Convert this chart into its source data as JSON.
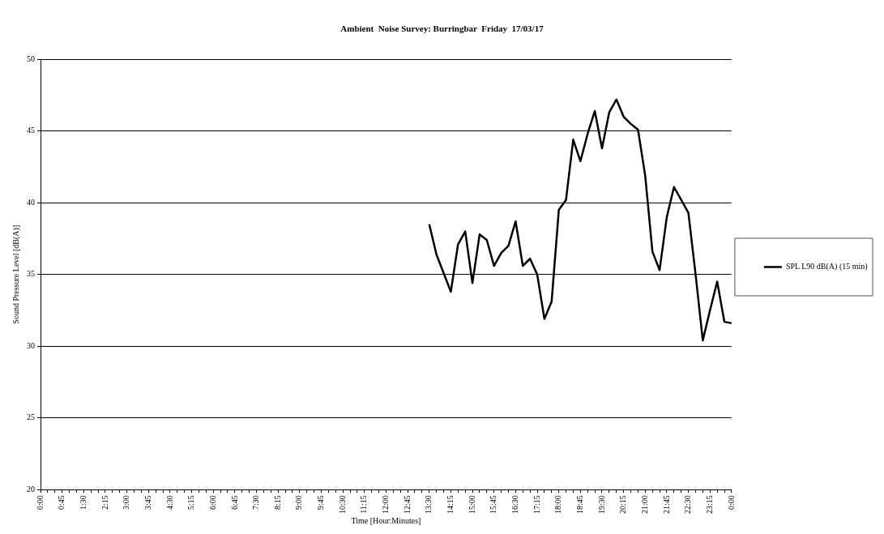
{
  "chart_data": {
    "type": "line",
    "title": "Ambient  Noise Survey: Burringbar  Friday  17/03/17",
    "xlabel": "Time [Hour:Minutes]",
    "ylabel": "Sound Pressure Level [dB(A)]",
    "categories": [
      "0:00",
      null,
      null,
      "0:45",
      null,
      null,
      "1:30",
      null,
      null,
      "2:15",
      null,
      null,
      "3:00",
      null,
      null,
      "3:45",
      null,
      null,
      "4:30",
      null,
      null,
      "5:15",
      null,
      null,
      "6:00",
      null,
      null,
      "6:45",
      null,
      null,
      "7:30",
      null,
      null,
      "8:15",
      null,
      null,
      "9:00",
      null,
      null,
      "9:45",
      null,
      null,
      "10:30",
      null,
      null,
      "11:15",
      null,
      null,
      "12:00",
      null,
      null,
      "12:45",
      null,
      null,
      "13:30",
      null,
      null,
      "14:15",
      null,
      null,
      "15:00",
      null,
      null,
      "15:45",
      null,
      null,
      "16:30",
      null,
      null,
      "17:15",
      null,
      null,
      "18:00",
      null,
      null,
      "18:45",
      null,
      null,
      "19:30",
      null,
      null,
      "20:15",
      null,
      null,
      "21:00",
      null,
      null,
      "21:45",
      null,
      null,
      "22:30",
      null,
      null,
      "23:15",
      null,
      null,
      "0:00"
    ],
    "series": [
      {
        "name": "SPL L90 dB(A) (15 min)",
        "color": "#000000",
        "values": [
          null,
          null,
          null,
          null,
          null,
          null,
          null,
          null,
          null,
          null,
          null,
          null,
          null,
          null,
          null,
          null,
          null,
          null,
          null,
          null,
          null,
          null,
          null,
          null,
          null,
          null,
          null,
          null,
          null,
          null,
          null,
          null,
          null,
          null,
          null,
          null,
          null,
          null,
          null,
          null,
          null,
          null,
          null,
          null,
          null,
          null,
          null,
          null,
          null,
          null,
          null,
          null,
          null,
          null,
          38.5,
          36.4,
          35.1,
          33.8,
          37.1,
          38.0,
          34.4,
          37.8,
          37.4,
          35.6,
          36.5,
          37.0,
          38.7,
          35.6,
          36.1,
          35.0,
          31.9,
          33.1,
          39.5,
          40.2,
          44.4,
          42.9,
          44.8,
          46.4,
          43.8,
          46.3,
          47.2,
          46.0,
          45.5,
          45.1,
          41.9,
          36.6,
          35.3,
          39.0,
          41.1,
          40.2,
          39.3,
          35.0,
          30.4,
          32.5,
          34.5,
          31.7,
          31.6
        ]
      }
    ],
    "ylim": [
      20,
      50
    ],
    "yticks": [
      20,
      25,
      30,
      35,
      40,
      45,
      50
    ],
    "grid": "y",
    "legend": "right",
    "marker": "none",
    "line_style": "solid"
  }
}
